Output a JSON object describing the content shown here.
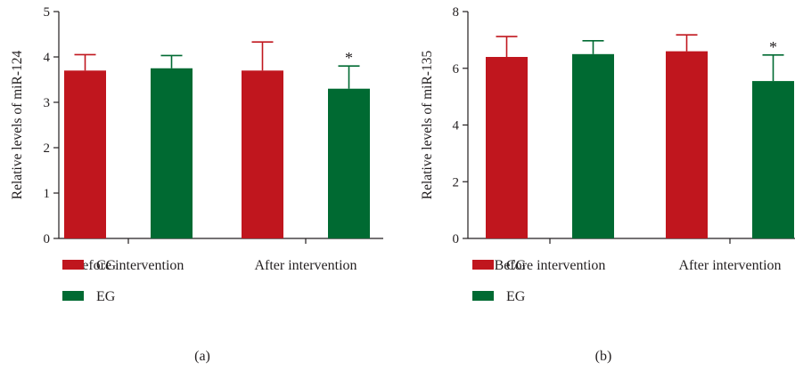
{
  "colors": {
    "cg": "#c0161e",
    "eg": "#006a32",
    "axis": "#231f20"
  },
  "chart_data": [
    {
      "type": "bar",
      "panel_label": "(a)",
      "ylabel": "Relative levels of miR-124",
      "xlabel": "",
      "ylim": [
        0,
        5
      ],
      "yticks": [
        0,
        1,
        2,
        3,
        4,
        5
      ],
      "categories": [
        "Before intervention",
        "After intervention"
      ],
      "series": [
        {
          "name": "CG",
          "color": "#c0161e",
          "values": [
            3.7,
            3.7
          ],
          "errors": [
            0.35,
            0.63
          ]
        },
        {
          "name": "EG",
          "color": "#006a32",
          "values": [
            3.75,
            3.3
          ],
          "errors": [
            0.28,
            0.5
          ]
        }
      ],
      "annotations": [
        {
          "category": 1,
          "series": 1,
          "text": "*"
        }
      ],
      "legend": [
        "CG",
        "EG"
      ],
      "legend_position": "bottom-left",
      "grid": false
    },
    {
      "type": "bar",
      "panel_label": "(b)",
      "ylabel": "Relative levels of miR-135",
      "xlabel": "",
      "ylim": [
        0,
        8
      ],
      "yticks": [
        0,
        2,
        4,
        6,
        8
      ],
      "categories": [
        "Before intervention",
        "After intervention"
      ],
      "series": [
        {
          "name": "CG",
          "color": "#c0161e",
          "values": [
            6.4,
            6.6
          ],
          "errors": [
            0.72,
            0.58
          ]
        },
        {
          "name": "EG",
          "color": "#006a32",
          "values": [
            6.5,
            5.55
          ],
          "errors": [
            0.47,
            0.92
          ]
        }
      ],
      "annotations": [
        {
          "category": 1,
          "series": 1,
          "text": "*"
        }
      ],
      "legend": [
        "CG",
        "EG"
      ],
      "legend_position": "bottom-left",
      "grid": false
    }
  ]
}
